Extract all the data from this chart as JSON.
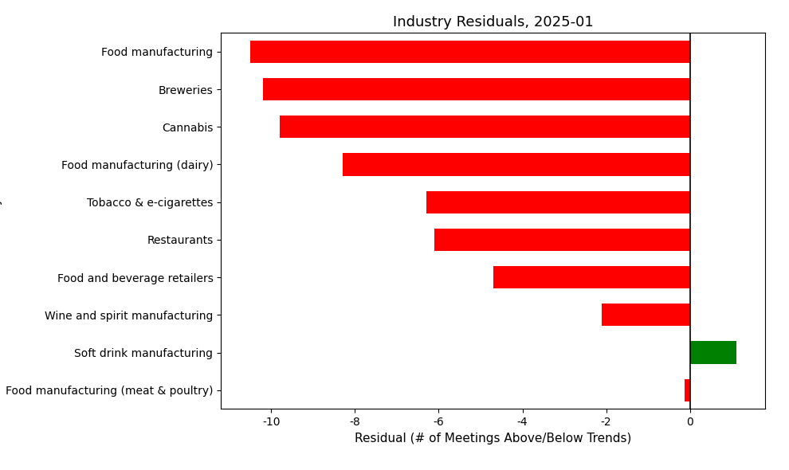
{
  "title": "Industry Residuals, 2025-01",
  "xlabel": "Residual (# of Meetings Above/Below Trends)",
  "ylabel": "Industry",
  "categories": [
    "Food manufacturing",
    "Breweries",
    "Cannabis",
    "Food manufacturing (dairy)",
    "Tobacco & e-cigarettes",
    "Restaurants",
    "Food and beverage retailers",
    "Wine and spirit manufacturing",
    "Soft drink manufacturing",
    "Food manufacturing (meat & poultry)"
  ],
  "values": [
    -10.5,
    -10.2,
    -9.8,
    -8.3,
    -6.3,
    -6.1,
    -4.7,
    -2.1,
    1.1,
    -0.12
  ],
  "colors": [
    "red",
    "red",
    "red",
    "red",
    "red",
    "red",
    "red",
    "red",
    "green",
    "red"
  ],
  "xlim": [
    -11.2,
    1.8
  ],
  "xticks": [
    -10,
    -8,
    -6,
    -4,
    -2,
    0
  ],
  "background_color": "white",
  "title_fontsize": 13,
  "label_fontsize": 11,
  "tick_fontsize": 10,
  "bar_height": 0.6
}
